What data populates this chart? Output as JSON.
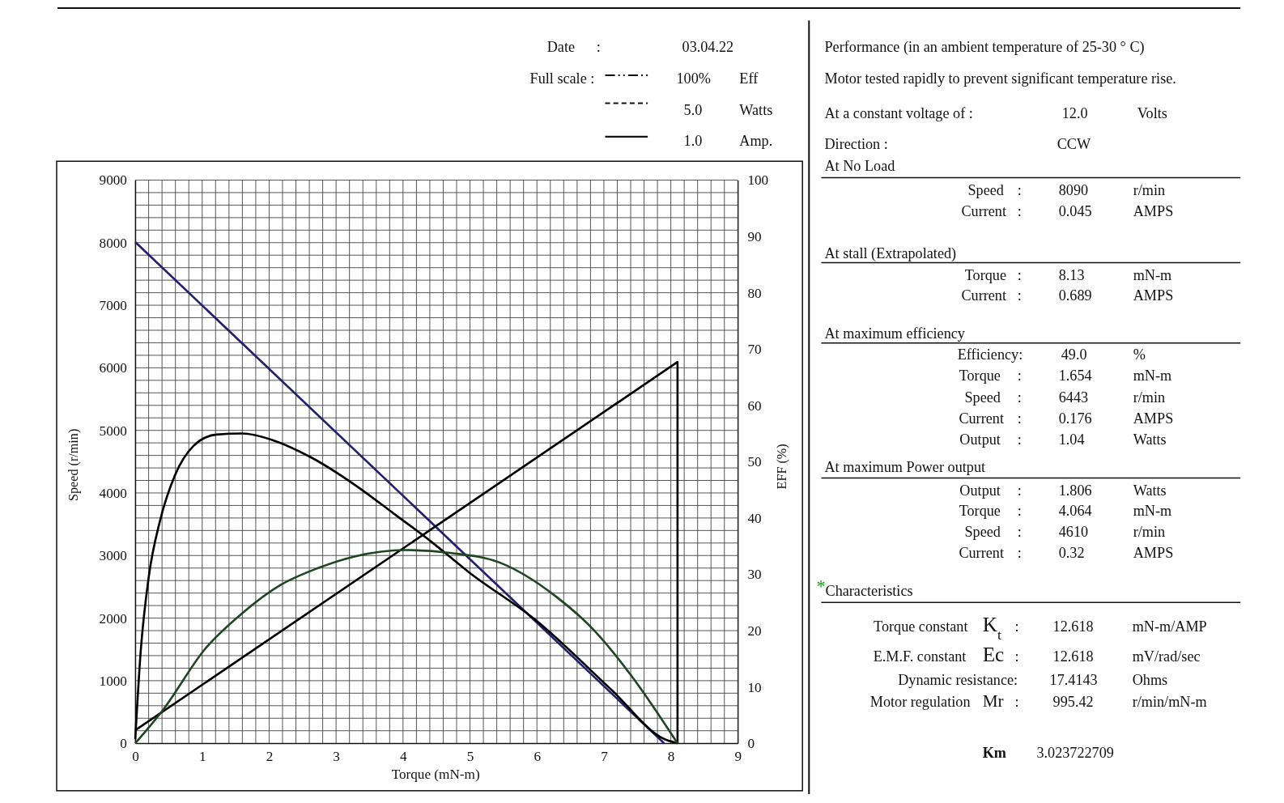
{
  "chart_data": [
    {
      "type": "line",
      "xlabel": "Torque (mN-m)",
      "ylabel": "Speed (r/min)",
      "y2label": "EFF (%)",
      "xlim": [
        0,
        9
      ],
      "xticks": [
        0,
        1,
        2,
        3,
        4,
        5,
        6,
        7,
        8,
        9
      ],
      "ylim": [
        0,
        9000
      ],
      "yticks": [
        0,
        1000,
        2000,
        3000,
        4000,
        5000,
        6000,
        7000,
        8000,
        9000
      ],
      "y2lim": [
        0,
        100
      ],
      "y2ticks": [
        0,
        10,
        20,
        30,
        40,
        50,
        60,
        70,
        80,
        90,
        100
      ],
      "grid": true,
      "series": [
        {
          "color": "#20206e",
          "x": [
            0,
            7.9
          ],
          "values": [
            8010,
            0
          ]
        },
        {
          "color": "#000000",
          "axis": "y2",
          "x": [
            0,
            8.1,
            8.1
          ],
          "values": [
            2.3,
            67.7,
            0
          ]
        },
        {
          "color": "#000000",
          "axis": "y2",
          "x": [
            0,
            0.08,
            0.2,
            0.37,
            0.59,
            0.87,
            1.21,
            1.6,
            2.06,
            2.62,
            3.29,
            3.86,
            4.42,
            4.98,
            6.0,
            7.12,
            7.91,
            8.1
          ],
          "values": [
            0.7,
            16.1,
            29.4,
            39.5,
            47.5,
            52.8,
            54.8,
            55.0,
            53.8,
            50.8,
            45.8,
            40.8,
            35.8,
            30.4,
            21.7,
            9.4,
            0.7,
            0
          ]
        },
        {
          "color": "#1e4620",
          "axis": "y2",
          "x": [
            0,
            0.42,
            1.04,
            1.6,
            2.17,
            2.73,
            3.29,
            4.03,
            4.7,
            5.44,
            6.28,
            6.85,
            7.41,
            8.1
          ],
          "values": [
            0,
            6.0,
            16.7,
            23.1,
            28.1,
            31.1,
            33.2,
            34.3,
            33.8,
            32.1,
            26.1,
            20.1,
            12.0,
            0
          ]
        }
      ]
    },
    {
      "type": "other",
      "annotations": [
        "Date",
        ":",
        "03.04.22",
        "Full scale :",
        "100%",
        "Eff",
        "5.0",
        "Watts",
        "1.0",
        "Amp.",
        "Performance (in an ambient temperature of 25-30 ° C)",
        "Motor tested rapidly to prevent significant temperature rise.",
        "At a constant voltage of :",
        "12.0",
        "Volts",
        "Direction  :",
        "CCW",
        "At No Load",
        "Speed",
        ":",
        "8090",
        "r/min",
        "Current",
        ":",
        "0.045",
        "AMPS",
        "At stall (Extrapolated)",
        "Torque",
        ":",
        "8.13",
        "mN-m",
        "Current",
        ":",
        "0.689",
        "AMPS",
        "At maximum efficiency",
        "Efficiency:",
        "49.0",
        "%",
        "Torque",
        ":",
        "1.654",
        "mN-m",
        "Speed",
        ":",
        "6443",
        "r/min",
        "Current",
        ":",
        "0.176",
        "AMPS",
        "Output",
        ":",
        "1.04",
        "Watts",
        "At maximum Power output",
        "Output",
        ":",
        "1.806",
        "Watts",
        "Torque",
        ":",
        "4.064",
        "mN-m",
        "Speed",
        ":",
        "4610",
        "r/min",
        "Current",
        ":",
        "0.32",
        "AMPS",
        "*",
        "Characteristics",
        "Torque constant",
        "K$_{t}$",
        ":",
        "12.618",
        "mN-m/AMP",
        "E.M.F. constant",
        "Ec",
        ":",
        "12.618",
        "mV/rad/sec",
        "Dynamic resistance:",
        "17.4143",
        "Ohms",
        "Motor regulation",
        "Mr",
        ":",
        "995.42",
        "r/min/mN-m",
        "Km",
        "3.023722709"
      ]
    }
  ]
}
